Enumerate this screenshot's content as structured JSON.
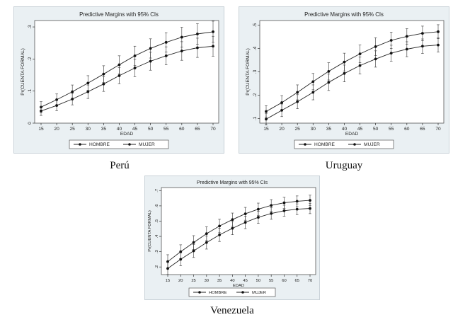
{
  "chart_data": [
    {
      "type": "line",
      "title": "Predictive Margins with 95% CIs",
      "caption": "Perú",
      "xlabel": "EDAD",
      "ylabel": "Pr(CUENTA FORMAL)",
      "x": [
        15,
        20,
        25,
        30,
        35,
        40,
        45,
        50,
        55,
        60,
        65,
        70
      ],
      "xticks": [
        "15",
        "20",
        "25",
        "30",
        "35",
        "40",
        "45",
        "50",
        "55",
        "60",
        "65",
        "70"
      ],
      "xlim": [
        15,
        70
      ],
      "ylim": [
        0,
        0.32
      ],
      "yticks": [
        0,
        0.1,
        0.2,
        0.3
      ],
      "ytick_labels": [
        "0",
        ".1",
        ".2",
        ".3"
      ],
      "grid": false,
      "legend": "bottom",
      "series": [
        {
          "name": "HOMBRE",
          "values": [
            0.05,
            0.073,
            0.098,
            0.125,
            0.153,
            0.182,
            0.21,
            0.233,
            0.252,
            0.268,
            0.278,
            0.285
          ],
          "ci_half": [
            0.017,
            0.018,
            0.021,
            0.023,
            0.026,
            0.028,
            0.03,
            0.03,
            0.03,
            0.031,
            0.032,
            0.033
          ]
        },
        {
          "name": "MUJER",
          "values": [
            0.038,
            0.055,
            0.075,
            0.098,
            0.122,
            0.148,
            0.172,
            0.193,
            0.21,
            0.225,
            0.235,
            0.24
          ],
          "ci_half": [
            0.014,
            0.016,
            0.018,
            0.021,
            0.023,
            0.025,
            0.027,
            0.028,
            0.028,
            0.029,
            0.03,
            0.031
          ]
        }
      ]
    },
    {
      "type": "line",
      "title": "Predictive Margins with 95% CIs",
      "caption": "Uruguay",
      "xlabel": "EDAD",
      "ylabel": "Pr(CUENTA FORMAL)",
      "x": [
        15,
        20,
        25,
        30,
        35,
        40,
        45,
        50,
        55,
        60,
        65,
        70
      ],
      "xticks": [
        "15",
        "20",
        "25",
        "30",
        "35",
        "40",
        "45",
        "50",
        "55",
        "60",
        "65",
        "70"
      ],
      "xlim": [
        15,
        70
      ],
      "ylim": [
        0.08,
        0.52
      ],
      "yticks": [
        0.1,
        0.2,
        0.3,
        0.4,
        0.5
      ],
      "ytick_labels": [
        ".1",
        ".2",
        ".3",
        ".4",
        ".5"
      ],
      "grid": false,
      "legend": "bottom",
      "series": [
        {
          "name": "HOMBRE",
          "values": [
            0.13,
            0.168,
            0.212,
            0.258,
            0.302,
            0.342,
            0.377,
            0.408,
            0.435,
            0.452,
            0.465,
            0.472
          ],
          "ci_half": [
            0.025,
            0.03,
            0.032,
            0.035,
            0.037,
            0.038,
            0.038,
            0.038,
            0.035,
            0.033,
            0.031,
            0.03
          ]
        },
        {
          "name": "MUJER",
          "values": [
            0.097,
            0.135,
            0.172,
            0.212,
            0.255,
            0.293,
            0.327,
            0.355,
            0.38,
            0.397,
            0.41,
            0.415
          ],
          "ci_half": [
            0.025,
            0.027,
            0.03,
            0.032,
            0.035,
            0.036,
            0.036,
            0.035,
            0.034,
            0.032,
            0.031,
            0.03
          ]
        }
      ]
    },
    {
      "type": "line",
      "title": "Predictive Margins with 95% CIs",
      "caption": "Venezuela",
      "xlabel": "EDAD",
      "ylabel": "Pr(CUENTA FORMAL)",
      "x": [
        15,
        20,
        25,
        30,
        35,
        40,
        45,
        50,
        55,
        60,
        65,
        70
      ],
      "xticks": [
        "15",
        "20",
        "25",
        "30",
        "35",
        "40",
        "45",
        "50",
        "55",
        "60",
        "65",
        "70"
      ],
      "xlim": [
        15,
        70
      ],
      "ylim": [
        0.15,
        0.72
      ],
      "yticks": [
        0.2,
        0.3,
        0.4,
        0.5,
        0.6,
        0.7
      ],
      "ytick_labels": [
        ".2",
        ".3",
        ".4",
        ".5",
        ".6",
        ".7"
      ],
      "grid": false,
      "legend": "bottom",
      "series": [
        {
          "name": "HOMBRE",
          "values": [
            0.235,
            0.3,
            0.36,
            0.418,
            0.468,
            0.51,
            0.548,
            0.578,
            0.603,
            0.62,
            0.63,
            0.636
          ],
          "ci_half": [
            0.045,
            0.045,
            0.045,
            0.045,
            0.044,
            0.043,
            0.042,
            0.04,
            0.038,
            0.036,
            0.035,
            0.034
          ]
        },
        {
          "name": "MUJER",
          "values": [
            0.19,
            0.25,
            0.305,
            0.36,
            0.41,
            0.453,
            0.492,
            0.525,
            0.55,
            0.568,
            0.578,
            0.583
          ],
          "ci_half": [
            0.04,
            0.042,
            0.043,
            0.043,
            0.043,
            0.042,
            0.041,
            0.04,
            0.038,
            0.036,
            0.035,
            0.034
          ]
        }
      ]
    }
  ]
}
